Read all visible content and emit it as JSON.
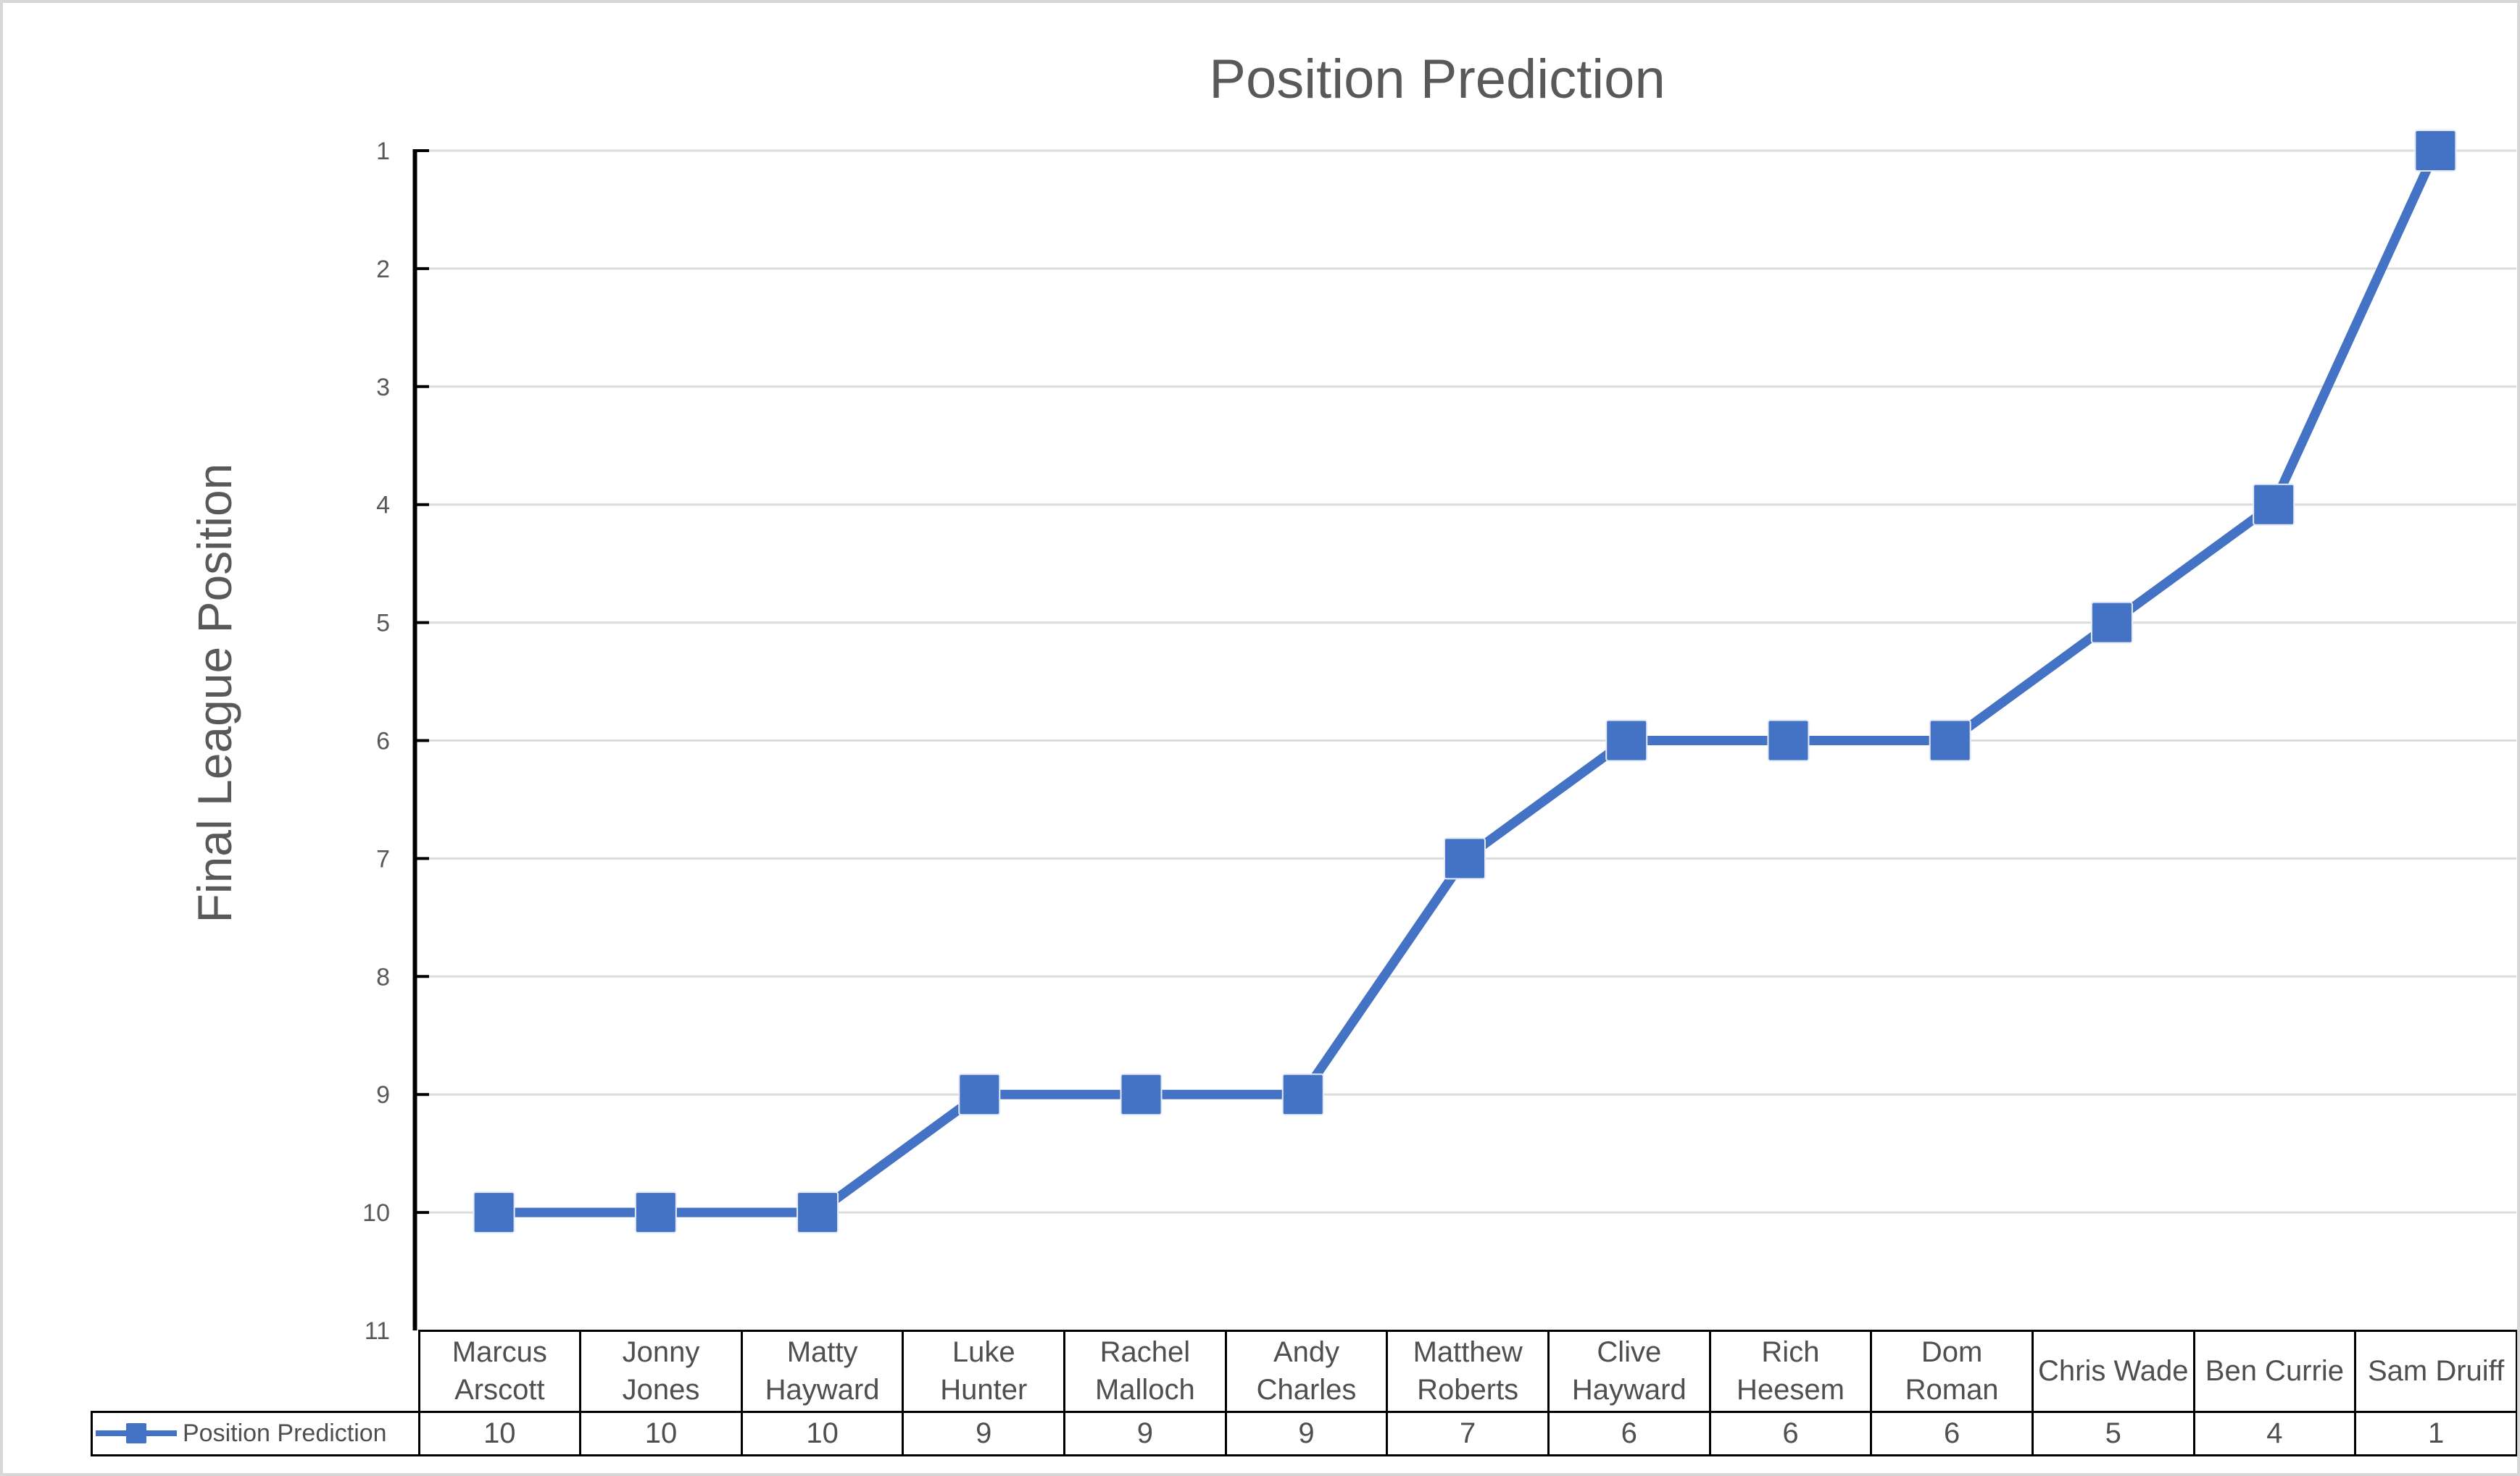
{
  "window": {
    "background": "#ffffff",
    "frame_border_color": "#d7d7d7"
  },
  "chart_data": {
    "type": "line",
    "title": "Position Prediction",
    "xlabel": "",
    "ylabel": "Final League Position",
    "categories": [
      "Marcus Arscott",
      "Jonny Jones",
      "Matty Hayward",
      "Luke Hunter",
      "Rachel Malloch",
      "Andy Charles",
      "Matthew Roberts",
      "Clive Hayward",
      "Rich Heesem",
      "Dom Roman",
      "Chris Wade",
      "Ben Currie",
      "Sam Druiff"
    ],
    "series": [
      {
        "name": "Position Prediction",
        "values": [
          10,
          10,
          10,
          9,
          9,
          9,
          7,
          6,
          6,
          6,
          5,
          4,
          1
        ]
      }
    ],
    "y_axis": {
      "min": 1,
      "max": 11,
      "step": 1,
      "reversed": true,
      "ticks": [
        1,
        2,
        3,
        4,
        5,
        6,
        7,
        8,
        9,
        10,
        11
      ]
    },
    "grid": "horizontal-major",
    "marker": "square",
    "legend_position": "bottom-left-table-key",
    "colors": {
      "series": "#4472c4",
      "marker_edge": "#e4ebf7",
      "gridline": "#dcdcdc",
      "axis": "#000000",
      "tick_text": "#595959",
      "title_text": "#595959",
      "table_text": "#4f4f4f",
      "table_border": "#000000"
    }
  }
}
